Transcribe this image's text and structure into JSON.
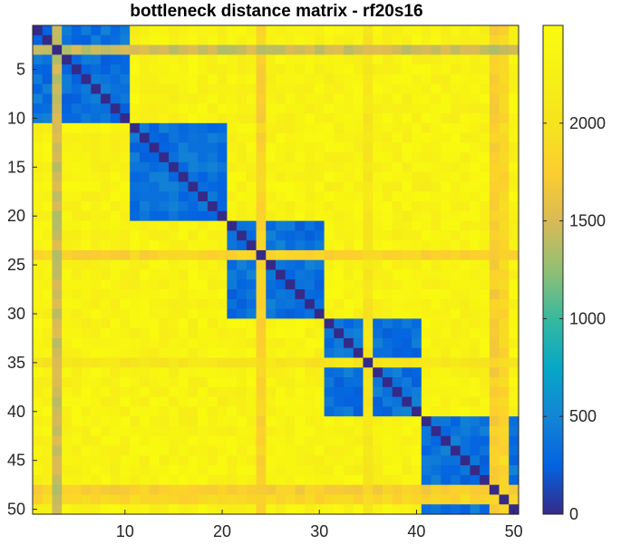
{
  "chart_data": {
    "type": "heatmap",
    "title": "bottleneck distance matrix - rf20s16",
    "size": 50,
    "x_ticks": [
      10,
      20,
      30,
      40,
      50
    ],
    "y_ticks": [
      5,
      10,
      15,
      20,
      25,
      30,
      35,
      40,
      45,
      50
    ],
    "colorbar_ticks": [
      0,
      500,
      1000,
      1500,
      2000
    ],
    "colorbar_range": [
      0,
      2500
    ],
    "colormap": "parula",
    "clusters": [
      [
        1,
        10
      ],
      [
        11,
        20
      ],
      [
        21,
        30
      ],
      [
        31,
        40
      ],
      [
        41,
        50
      ]
    ],
    "within_cluster_distance": 350,
    "between_cluster_distance": 2330,
    "outlier_rows": [
      {
        "index": 3,
        "distance": 1450
      },
      {
        "index": 24,
        "distance": 1800
      },
      {
        "index": 35,
        "distance": 2050
      },
      {
        "index": 48,
        "distance": 1750
      },
      {
        "index": 49,
        "distance": 1850
      }
    ]
  }
}
